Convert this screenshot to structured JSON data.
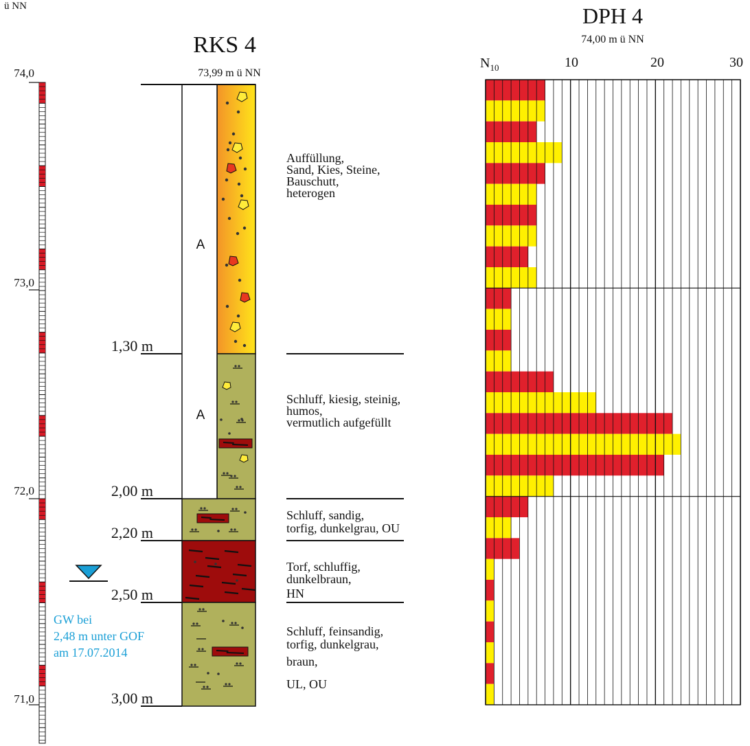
{
  "corner_label": "ü NN",
  "elevation_axis": {
    "ticks": [
      "74,0",
      "73,0",
      "72,0",
      "71,0"
    ]
  },
  "rks": {
    "title": "RKS 4",
    "top_elevation": "73,99 m ü NN",
    "depth_labels": [
      "1,30 m",
      "2,00 m",
      "2,20 m",
      "2,50 m",
      "3,00 m"
    ],
    "layers": [
      {
        "from": 0.0,
        "to": 1.3,
        "symbol": "A",
        "pattern": "fill",
        "description": [
          "Auffüllung,",
          "Sand, Kies, Steine,",
          "Bauschutt,",
          "heterogen"
        ]
      },
      {
        "from": 1.3,
        "to": 2.0,
        "symbol": "A",
        "pattern": "silt-gravel",
        "description": [
          "Schluff, kiesig, steinig,",
          "humos,",
          "vermutlich aufgefüllt"
        ]
      },
      {
        "from": 2.0,
        "to": 2.2,
        "symbol": "",
        "pattern": "silt-sand",
        "description": [
          "Schluff, sandig,",
          "torfig, dunkelgrau, OU"
        ]
      },
      {
        "from": 2.2,
        "to": 2.5,
        "symbol": "",
        "pattern": "peat",
        "description": [
          "Torf, schluffig,",
          "dunkelbraun,",
          "HN"
        ]
      },
      {
        "from": 2.5,
        "to": 3.0,
        "symbol": "",
        "pattern": "silt-finesand",
        "description": [
          "Schluff, feinsandig,",
          "torfig, dunkelgrau,",
          "braun,",
          "UL, OU"
        ]
      }
    ],
    "groundwater": [
      "GW bei",
      "2,48 m unter GOF",
      "am 17.07.2014"
    ]
  },
  "dph": {
    "title": "DPH 4",
    "top_elevation": "74,00 m ü NN",
    "n_label": "N",
    "n_subscript": "10",
    "x_ticks": [
      "10",
      "20",
      "30"
    ]
  },
  "chart_data": {
    "type": "bar",
    "title": "DPH 4",
    "orientation": "horizontal",
    "xlabel": "N10",
    "ylabel": "",
    "xlim": [
      0,
      30
    ],
    "depth_step_m": 0.1,
    "depth_range_m": [
      0,
      3.0
    ],
    "x_ticks": [
      10,
      20,
      30
    ],
    "values": [
      7,
      7,
      6,
      9,
      7,
      6,
      6,
      6,
      5,
      6,
      3,
      3,
      3,
      3,
      8,
      13,
      22,
      23,
      21,
      8,
      5,
      3,
      4,
      1,
      1,
      1,
      1,
      1,
      1,
      1
    ],
    "colors": [
      "#e0202c",
      "#fff000"
    ]
  }
}
